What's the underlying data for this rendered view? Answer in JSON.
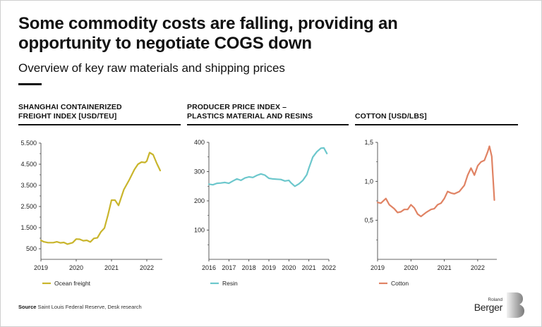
{
  "header": {
    "title": "Some commodity costs are falling, providing an opportunity to negotiate COGS down",
    "subtitle": "Overview of key raw materials and shipping prices"
  },
  "panels": [
    {
      "title_line1": "SHANGHAI CONTAINERIZED",
      "title_line2": "FREIGHT INDEX [USD/TEU]"
    },
    {
      "title_line1": "PRODUCER PRICE INDEX –",
      "title_line2": "PLASTICS MATERIAL AND RESINS"
    },
    {
      "title_line1": "COTTON [USD/LBS]",
      "title_line2": ""
    }
  ],
  "colors": {
    "freight": "#c9b52c",
    "resin": "#6cc7cc",
    "cotton": "#e08364",
    "axis": "#333333"
  },
  "chart_data": [
    {
      "type": "line",
      "title": "SHANGHAI CONTAINERIZED FREIGHT INDEX [USD/TEU]",
      "xlabel": "",
      "ylabel": "",
      "xlim": [
        2019,
        2022.4
      ],
      "ylim": [
        0,
        5500
      ],
      "yticks": [
        500,
        1500,
        2500,
        3500,
        4500,
        5500
      ],
      "ytick_labels": [
        "500",
        "1.500",
        "2.500",
        "3.500",
        "4.500",
        "5.500"
      ],
      "xticks": [
        2019,
        2020,
        2021,
        2022
      ],
      "xtick_labels": [
        "2019",
        "2020",
        "2021",
        "2022"
      ],
      "grid": false,
      "legend_position": "bottom-left",
      "series": [
        {
          "name": "Ocean freight",
          "x": [
            2019.0,
            2019.08,
            2019.2,
            2019.35,
            2019.45,
            2019.55,
            2019.65,
            2019.75,
            2019.9,
            2020.0,
            2020.1,
            2020.2,
            2020.3,
            2020.4,
            2020.5,
            2020.6,
            2020.7,
            2020.8,
            2020.9,
            2021.0,
            2021.1,
            2021.2,
            2021.35,
            2021.5,
            2021.65,
            2021.75,
            2021.85,
            2021.95,
            2022.0,
            2022.08,
            2022.18,
            2022.28,
            2022.38
          ],
          "values": [
            900,
            830,
            790,
            790,
            830,
            780,
            800,
            720,
            790,
            960,
            950,
            880,
            900,
            820,
            990,
            1020,
            1300,
            1480,
            2100,
            2800,
            2800,
            2550,
            3300,
            3750,
            4250,
            4500,
            4600,
            4580,
            4650,
            5050,
            4950,
            4550,
            4200
          ]
        }
      ]
    },
    {
      "type": "line",
      "title": "PRODUCER PRICE INDEX – PLASTICS MATERIAL AND RESINS",
      "xlabel": "",
      "ylabel": "",
      "xlim": [
        2016,
        2022
      ],
      "ylim": [
        0,
        400
      ],
      "yticks": [
        100,
        200,
        300,
        400
      ],
      "ytick_labels": [
        "100",
        "200",
        "300",
        "400"
      ],
      "xticks": [
        2016,
        2017,
        2018,
        2019,
        2020,
        2021,
        2022
      ],
      "xtick_labels": [
        "2016",
        "2017",
        "2018",
        "2019",
        "2020",
        "2021",
        "2022"
      ],
      "grid": false,
      "legend_position": "bottom-left",
      "series": [
        {
          "name": "Resin",
          "x": [
            2016.0,
            2016.2,
            2016.4,
            2016.6,
            2016.8,
            2017.0,
            2017.2,
            2017.4,
            2017.6,
            2017.8,
            2018.0,
            2018.2,
            2018.4,
            2018.6,
            2018.8,
            2019.0,
            2019.2,
            2019.4,
            2019.6,
            2019.8,
            2020.0,
            2020.1,
            2020.3,
            2020.5,
            2020.7,
            2020.9,
            2021.0,
            2021.2,
            2021.4,
            2021.6,
            2021.75,
            2021.9
          ],
          "values": [
            257,
            255,
            260,
            261,
            263,
            260,
            268,
            275,
            270,
            278,
            282,
            280,
            287,
            292,
            288,
            277,
            275,
            274,
            273,
            268,
            270,
            262,
            250,
            258,
            270,
            290,
            312,
            350,
            368,
            380,
            381,
            362
          ]
        }
      ]
    },
    {
      "type": "line",
      "title": "COTTON [USD/LBS]",
      "xlabel": "",
      "ylabel": "",
      "xlim": [
        2019,
        2022.5
      ],
      "ylim": [
        0,
        1.5
      ],
      "yticks": [
        0.5,
        1.0,
        1.5
      ],
      "ytick_labels": [
        "0,5",
        "1,0",
        "1,5"
      ],
      "xticks": [
        2019,
        2020,
        2021,
        2022
      ],
      "xtick_labels": [
        "2019",
        "2020",
        "2021",
        "2022"
      ],
      "grid": false,
      "legend_position": "bottom-left",
      "series": [
        {
          "name": "Cotton",
          "x": [
            2019.0,
            2019.1,
            2019.25,
            2019.35,
            2019.5,
            2019.6,
            2019.7,
            2019.8,
            2019.9,
            2020.0,
            2020.1,
            2020.2,
            2020.3,
            2020.45,
            2020.6,
            2020.7,
            2020.8,
            2020.9,
            2021.0,
            2021.1,
            2021.2,
            2021.3,
            2021.45,
            2021.6,
            2021.7,
            2021.8,
            2021.9,
            2022.0,
            2022.1,
            2022.2,
            2022.3,
            2022.35,
            2022.42,
            2022.5
          ],
          "values": [
            0.73,
            0.72,
            0.78,
            0.7,
            0.65,
            0.6,
            0.61,
            0.64,
            0.64,
            0.7,
            0.66,
            0.58,
            0.55,
            0.6,
            0.64,
            0.65,
            0.7,
            0.72,
            0.78,
            0.87,
            0.85,
            0.84,
            0.87,
            0.95,
            1.08,
            1.17,
            1.08,
            1.2,
            1.25,
            1.27,
            1.38,
            1.45,
            1.32,
            0.76
          ]
        }
      ]
    }
  ],
  "source": {
    "label": "Source",
    "text": "Saint Louis Federal Reserve, Desk research"
  },
  "logo": {
    "line1": "Roland",
    "line2": "Berger",
    "mark": "B"
  }
}
